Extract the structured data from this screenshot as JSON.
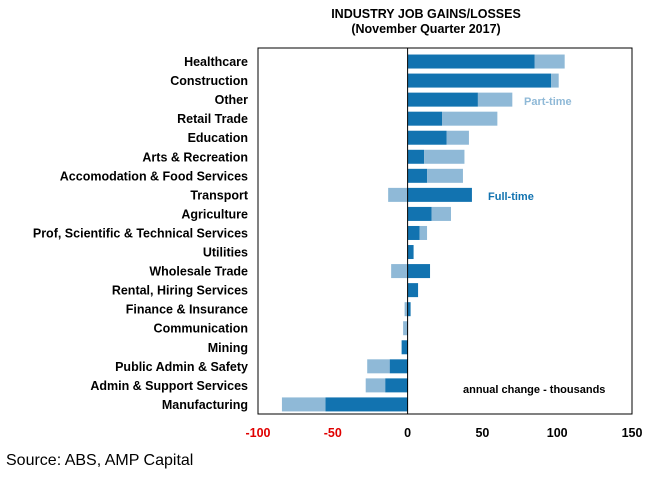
{
  "chart_data": {
    "type": "bar",
    "orientation": "horizontal",
    "stacked": true,
    "title": "INDUSTRY JOB GAINS/LOSSES",
    "subtitle": "(November Quarter 2017)",
    "categories": [
      "Healthcare",
      "Construction",
      "Other",
      "Retail Trade",
      "Education",
      "Arts & Recreation",
      "Accomodation & Food Services",
      "Transport",
      "Agriculture",
      "Prof, Scientific & Technical Services",
      "Utilities",
      "Wholesale Trade",
      "Rental, Hiring Services",
      "Finance & Insurance",
      "Communication",
      "Mining",
      "Public Admin & Safety",
      "Admin & Support Services",
      "Manufacturing"
    ],
    "series": [
      {
        "name": "Full-time",
        "color": "#1273b0",
        "values": [
          85,
          96,
          47,
          23,
          26,
          11,
          13,
          43,
          16,
          8,
          4,
          15,
          7,
          2,
          0,
          -4,
          -12,
          -15,
          -55
        ]
      },
      {
        "name": "Part-time",
        "color": "#8fb9d7",
        "values": [
          20,
          5,
          23,
          37,
          15,
          27,
          24,
          -13,
          13,
          5,
          0,
          -11,
          0,
          -2,
          -3,
          0,
          -15,
          -13,
          -29
        ]
      }
    ],
    "xlim": [
      -100,
      150
    ],
    "xticks": [
      -100,
      -50,
      0,
      50,
      100,
      150
    ],
    "annotation": "annual change - thousands",
    "grid": false,
    "legend": "inline labels"
  },
  "source": "Source: ABS, AMP Capital"
}
